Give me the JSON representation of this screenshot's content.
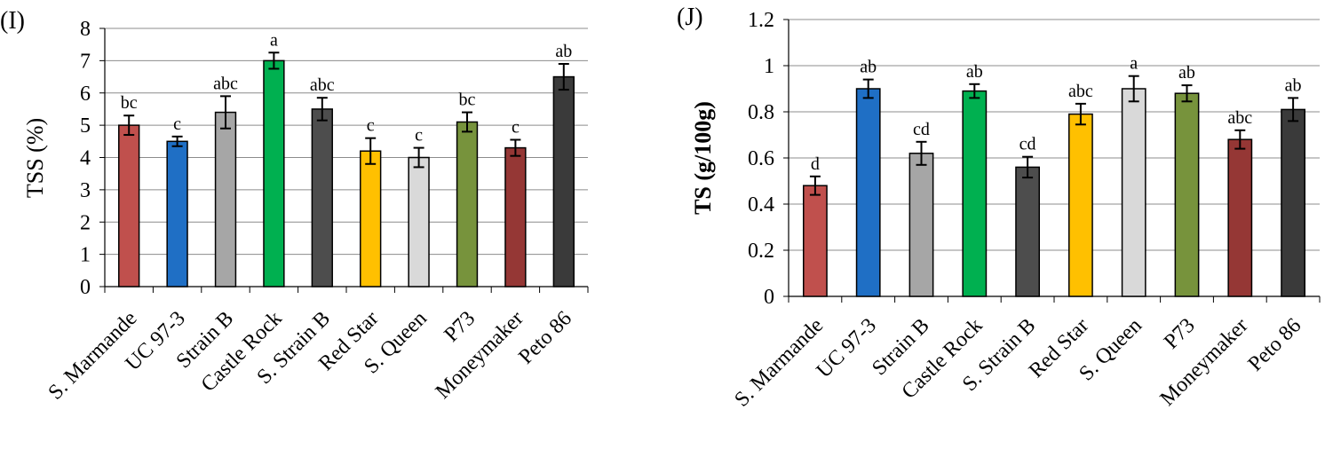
{
  "chart_data": [
    {
      "type": "bar",
      "panel_label": "(I)",
      "ylabel": "TSS (%)",
      "xlabel": "",
      "ylim": [
        0,
        8
      ],
      "yticks": [
        "0",
        "1",
        "2",
        "3",
        "4",
        "5",
        "6",
        "7",
        "8"
      ],
      "grid": "horizontal",
      "categories": [
        "S. Marmande",
        "UC 97-3",
        "Strain B",
        "Castle Rock",
        "S. Strain B",
        "Red Star",
        "S. Queen",
        "P73",
        "Moneymaker",
        "Peto 86"
      ],
      "values": [
        5.0,
        4.5,
        5.4,
        7.0,
        5.5,
        4.2,
        4.0,
        5.1,
        4.3,
        6.5
      ],
      "errors": [
        0.3,
        0.15,
        0.5,
        0.25,
        0.35,
        0.4,
        0.3,
        0.3,
        0.25,
        0.4
      ],
      "significance": [
        "bc",
        "c",
        "abc",
        "a",
        "abc",
        "c",
        "c",
        "bc",
        "c",
        "ab"
      ],
      "colors": [
        "#c0504d",
        "#1f6fc5",
        "#a6a6a6",
        "#00b050",
        "#4d4d4d",
        "#ffc000",
        "#d9d9d9",
        "#77933c",
        "#953735",
        "#3a3a3a"
      ]
    },
    {
      "type": "bar",
      "panel_label": "(J)",
      "ylabel": "TS (g/100g)",
      "xlabel": "",
      "ylim": [
        0,
        1.2
      ],
      "yticks": [
        "0",
        "0.2",
        "0.4",
        "0.6",
        "0.8",
        "1",
        "1.2"
      ],
      "grid": "horizontal",
      "categories": [
        "S. Marmande",
        "UC 97-3",
        "Strain B",
        "Castle Rock",
        "S. Strain B",
        "Red Star",
        "S. Queen",
        "P73",
        "Moneymaker",
        "Peto 86"
      ],
      "values": [
        0.48,
        0.9,
        0.62,
        0.89,
        0.56,
        0.79,
        0.9,
        0.88,
        0.68,
        0.81
      ],
      "errors": [
        0.04,
        0.04,
        0.05,
        0.03,
        0.045,
        0.045,
        0.055,
        0.035,
        0.04,
        0.05
      ],
      "significance": [
        "d",
        "ab",
        "cd",
        "ab",
        "cd",
        "abc",
        "a",
        "ab",
        "abc",
        "ab"
      ],
      "colors": [
        "#c0504d",
        "#1f6fc5",
        "#a6a6a6",
        "#00b050",
        "#4d4d4d",
        "#ffc000",
        "#d9d9d9",
        "#77933c",
        "#953735",
        "#3a3a3a"
      ]
    }
  ]
}
